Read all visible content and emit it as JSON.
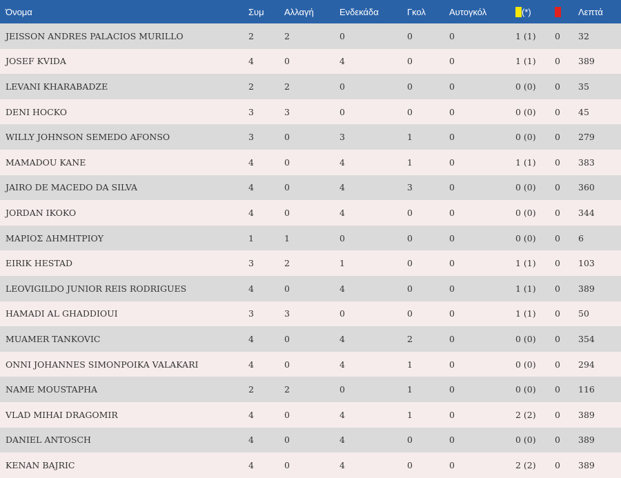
{
  "header": {
    "name": "Όνομα",
    "apps": "Συμ",
    "sub": "Αλλαγή",
    "start": "Ενδεκάδα",
    "goals": "Γκολ",
    "own": "Αυτογκόλ",
    "yellow_suffix": "(*)",
    "minutes": "Λεπτά"
  },
  "colors": {
    "yellow_card": "#f4e80c",
    "red_card": "#e2211c",
    "header_bg": "#2a62a8"
  },
  "players": [
    {
      "name": "JEISSON ANDRES PALACIOS MURILLO",
      "apps": "2",
      "sub": "2",
      "start": "0",
      "goals": "0",
      "own": "0",
      "yellow": "1 (1)",
      "red": "0",
      "minutes": "32"
    },
    {
      "name": "JOSEF KVIDA",
      "apps": "4",
      "sub": "0",
      "start": "4",
      "goals": "0",
      "own": "0",
      "yellow": "1 (1)",
      "red": "0",
      "minutes": "389"
    },
    {
      "name": "LEVANI KHARABADZE",
      "apps": "2",
      "sub": "2",
      "start": "0",
      "goals": "0",
      "own": "0",
      "yellow": "0 (0)",
      "red": "0",
      "minutes": "35"
    },
    {
      "name": "DENI HOCKO",
      "apps": "3",
      "sub": "3",
      "start": "0",
      "goals": "0",
      "own": "0",
      "yellow": "0 (0)",
      "red": "0",
      "minutes": "45"
    },
    {
      "name": "WILLY JOHNSON SEMEDO AFONSO",
      "apps": "3",
      "sub": "0",
      "start": "3",
      "goals": "1",
      "own": "0",
      "yellow": "0 (0)",
      "red": "0",
      "minutes": "279"
    },
    {
      "name": "MAMADOU KANE",
      "apps": "4",
      "sub": "0",
      "start": "4",
      "goals": "1",
      "own": "0",
      "yellow": "1 (1)",
      "red": "0",
      "minutes": "383"
    },
    {
      "name": "JAIRO DE MACEDO DA SILVA",
      "apps": "4",
      "sub": "0",
      "start": "4",
      "goals": "3",
      "own": "0",
      "yellow": "0 (0)",
      "red": "0",
      "minutes": "360"
    },
    {
      "name": "JORDAN IKOKO",
      "apps": "4",
      "sub": "0",
      "start": "4",
      "goals": "0",
      "own": "0",
      "yellow": "0 (0)",
      "red": "0",
      "minutes": "344"
    },
    {
      "name": "ΜΑΡΙΟΣ ΔΗΜΗΤΡΙΟΥ",
      "apps": "1",
      "sub": "1",
      "start": "0",
      "goals": "0",
      "own": "0",
      "yellow": "0 (0)",
      "red": "0",
      "minutes": "6"
    },
    {
      "name": "EIRIK HESTAD",
      "apps": "3",
      "sub": "2",
      "start": "1",
      "goals": "0",
      "own": "0",
      "yellow": "1 (1)",
      "red": "0",
      "minutes": "103"
    },
    {
      "name": "LEOVIGILDO JUNIOR REIS RODRIGUES",
      "apps": "4",
      "sub": "0",
      "start": "4",
      "goals": "0",
      "own": "0",
      "yellow": "1 (1)",
      "red": "0",
      "minutes": "389"
    },
    {
      "name": "HAMADI AL GHADDIOUI",
      "apps": "3",
      "sub": "3",
      "start": "0",
      "goals": "0",
      "own": "0",
      "yellow": "1 (1)",
      "red": "0",
      "minutes": "50"
    },
    {
      "name": "MUAMER TANKOVIC",
      "apps": "4",
      "sub": "0",
      "start": "4",
      "goals": "2",
      "own": "0",
      "yellow": "0 (0)",
      "red": "0",
      "minutes": "354"
    },
    {
      "name": "ONNI JOHANNES SIMONPOIKA VALAKARI",
      "apps": "4",
      "sub": "0",
      "start": "4",
      "goals": "1",
      "own": "0",
      "yellow": "0 (0)",
      "red": "0",
      "minutes": "294"
    },
    {
      "name": "NAME MOUSTAPHA",
      "apps": "2",
      "sub": "2",
      "start": "0",
      "goals": "1",
      "own": "0",
      "yellow": "0 (0)",
      "red": "0",
      "minutes": "116"
    },
    {
      "name": "VLAD MIHAI DRAGOMIR",
      "apps": "4",
      "sub": "0",
      "start": "4",
      "goals": "1",
      "own": "0",
      "yellow": "2 (2)",
      "red": "0",
      "minutes": "389"
    },
    {
      "name": "DANIEL ANTOSCH",
      "apps": "4",
      "sub": "0",
      "start": "4",
      "goals": "0",
      "own": "0",
      "yellow": "0 (0)",
      "red": "0",
      "minutes": "389"
    },
    {
      "name": "KENAN BAJRIC",
      "apps": "4",
      "sub": "0",
      "start": "4",
      "goals": "0",
      "own": "0",
      "yellow": "2 (2)",
      "red": "0",
      "minutes": "389"
    }
  ]
}
